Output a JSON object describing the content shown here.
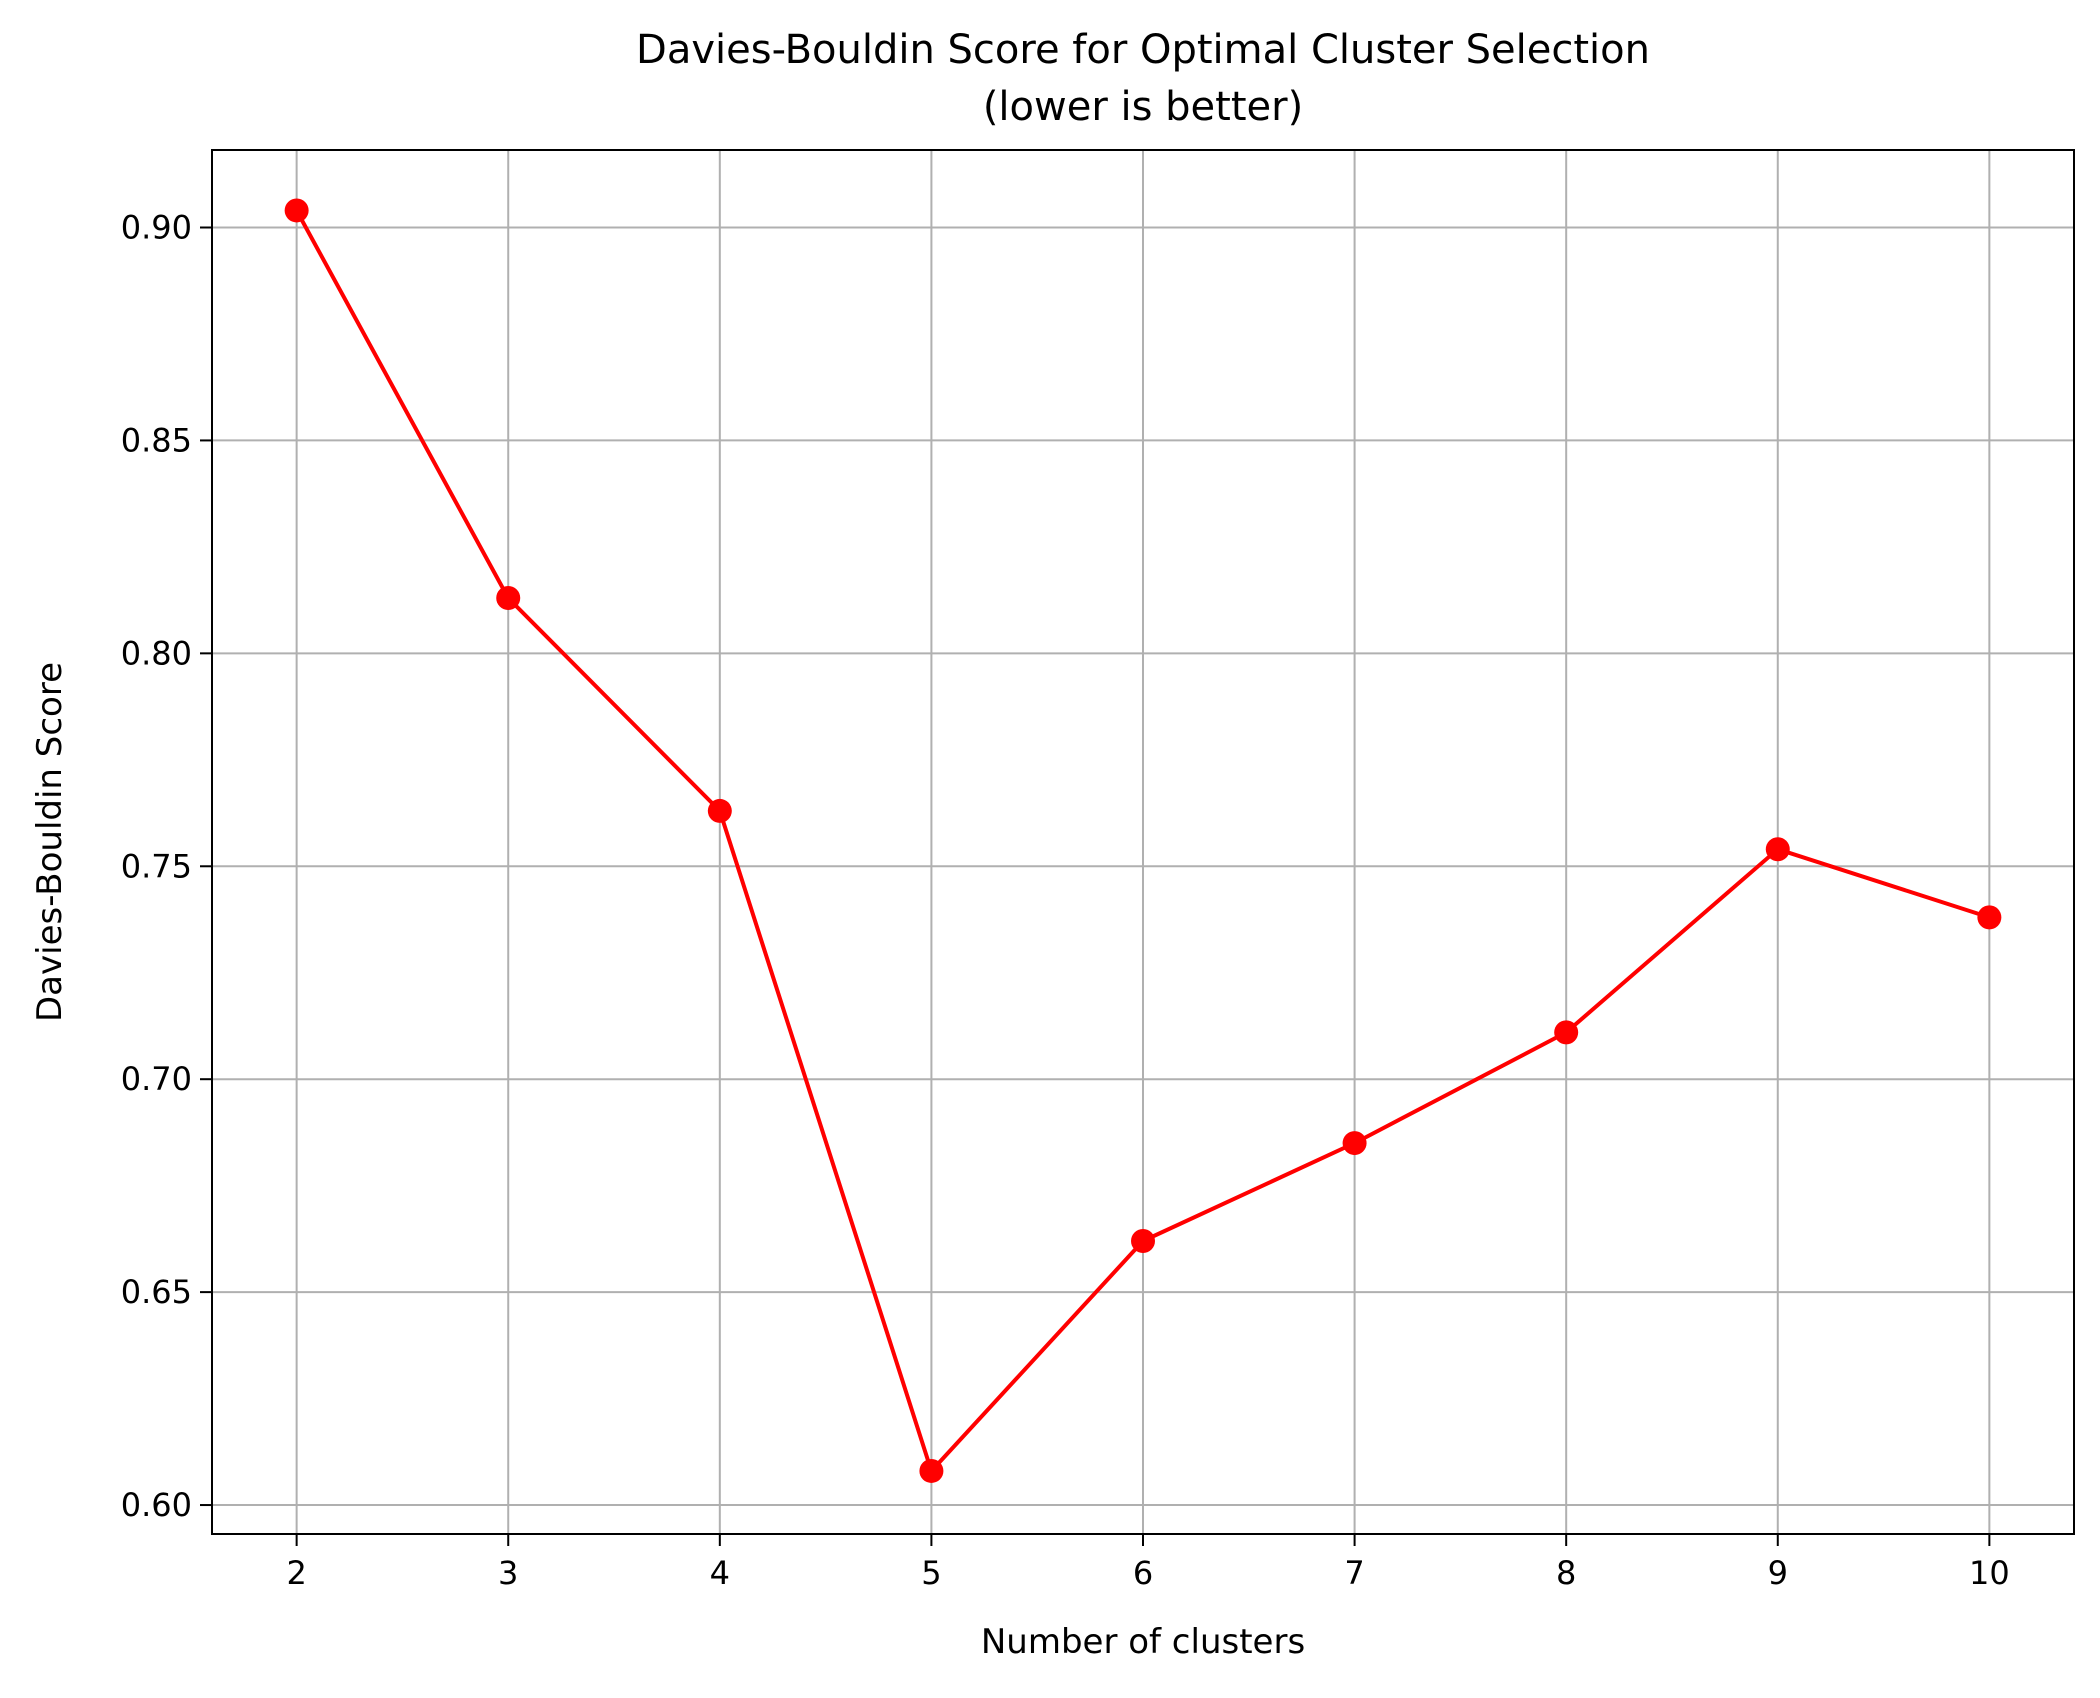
{
  "chart_data": {
    "type": "line",
    "title": "Davies-Bouldin Score for Optimal Cluster Selection",
    "subtitle": "(lower is better)",
    "xlabel": "Number of clusters",
    "ylabel": "Davies-Bouldin Score",
    "x": [
      2,
      3,
      4,
      5,
      6,
      7,
      8,
      9,
      10
    ],
    "series": [
      {
        "values": [
          0.904,
          0.813,
          0.763,
          0.608,
          0.662,
          0.685,
          0.711,
          0.754,
          0.738
        ],
        "color": "#ff0000",
        "marker": "circle"
      }
    ],
    "xticks": [
      2,
      3,
      4,
      5,
      6,
      7,
      8,
      9,
      10
    ],
    "xtick_labels": [
      "2",
      "3",
      "4",
      "5",
      "6",
      "7",
      "8",
      "9",
      "10"
    ],
    "yticks": [
      0.6,
      0.65,
      0.7,
      0.75,
      0.8,
      0.85,
      0.9
    ],
    "ytick_labels": [
      "0.60",
      "0.65",
      "0.70",
      "0.75",
      "0.80",
      "0.85",
      "0.90"
    ],
    "xlim": [
      1.6,
      10.4
    ],
    "ylim": [
      0.5932,
      0.9182
    ],
    "grid": true,
    "grid_color": "#b0b0b0",
    "axis_color": "#000000"
  }
}
